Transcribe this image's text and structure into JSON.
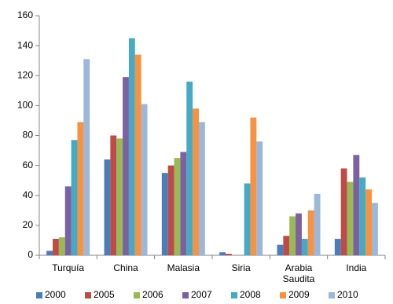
{
  "chart_data": {
    "type": "bar",
    "categories": [
      "Turquía",
      "China",
      "Malasia",
      "Siria",
      "Arabia Saudita",
      "India"
    ],
    "series": [
      {
        "name": "2000",
        "color": "#4a7ebb",
        "values": [
          3,
          64,
          55,
          2,
          7,
          11
        ]
      },
      {
        "name": "2005",
        "color": "#be4b48",
        "values": [
          11,
          80,
          60,
          1,
          13,
          58
        ]
      },
      {
        "name": "2006",
        "color": "#98b954",
        "values": [
          12,
          78,
          65,
          0,
          26,
          49
        ]
      },
      {
        "name": "2007",
        "color": "#7d60a0",
        "values": [
          46,
          119,
          69,
          0,
          28,
          67
        ]
      },
      {
        "name": "2008",
        "color": "#46aac5",
        "values": [
          77,
          145,
          116,
          48,
          11,
          52
        ]
      },
      {
        "name": "2009",
        "color": "#f69240",
        "values": [
          89,
          134,
          98,
          92,
          30,
          44
        ]
      },
      {
        "name": "2010",
        "color": "#9bb7d9",
        "values": [
          131,
          101,
          89,
          76,
          41,
          35
        ]
      }
    ],
    "ylim": [
      0,
      160
    ],
    "yticks": [
      0,
      20,
      40,
      60,
      80,
      100,
      120,
      140,
      160
    ],
    "grid": false
  }
}
